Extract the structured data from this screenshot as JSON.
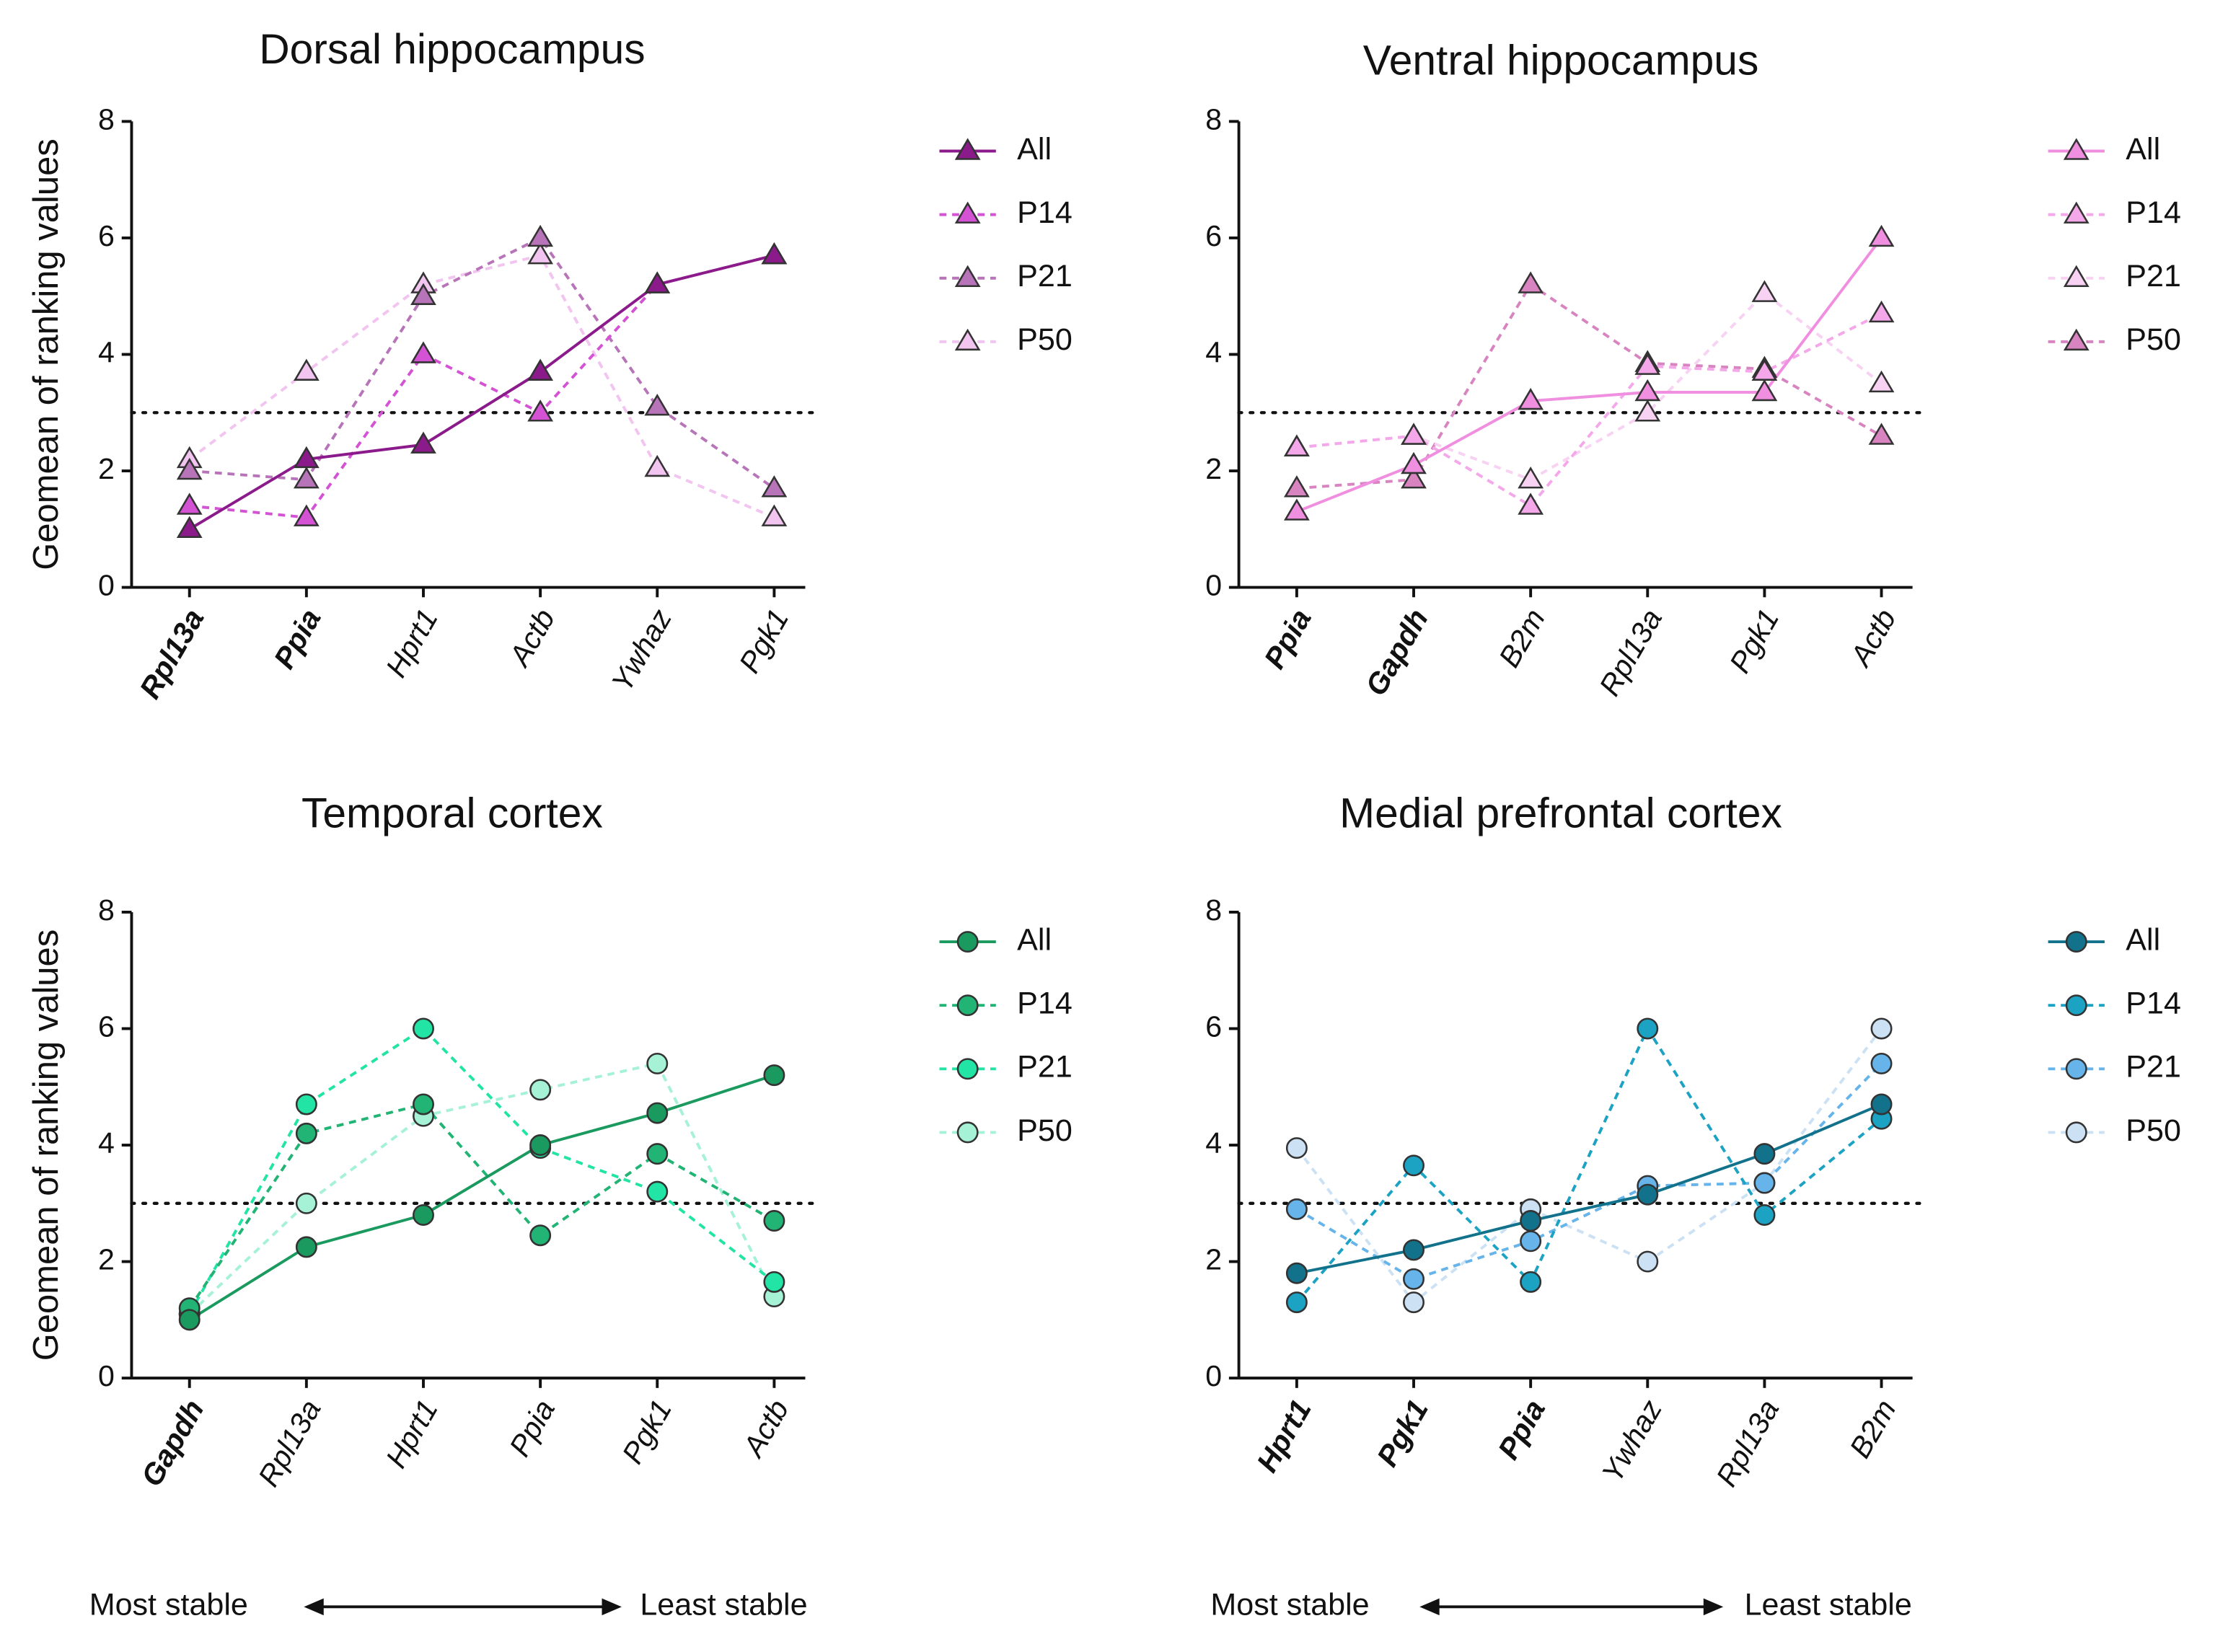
{
  "chart_data": [
    {
      "type": "line",
      "title": "Dorsal hippocampus",
      "ylabel": "Geomean of ranking values",
      "categories": [
        "Rpl13a",
        "Ppia",
        "Hprt1",
        "Actb",
        "Ywhaz",
        "Pgk1"
      ],
      "bold_categories": [
        true,
        true,
        false,
        false,
        false,
        false
      ],
      "ylim": [
        0,
        8
      ],
      "yticks": [
        0,
        2,
        4,
        6,
        8
      ],
      "reference_line": 3,
      "series": [
        {
          "name": "All",
          "color": "#8b1a8b",
          "marker": "triangle",
          "line_style": "solid",
          "values": [
            1.0,
            2.2,
            2.45,
            3.7,
            5.2,
            5.7
          ]
        },
        {
          "name": "P14",
          "color": "#d452d4",
          "marker": "triangle",
          "line_style": "dashed",
          "values": [
            1.4,
            1.2,
            4.0,
            3.0,
            5.2,
            5.7
          ]
        },
        {
          "name": "P21",
          "color": "#b874b8",
          "marker": "triangle",
          "line_style": "dashed",
          "values": [
            2.0,
            1.85,
            5.0,
            6.0,
            3.1,
            1.7
          ]
        },
        {
          "name": "P50",
          "color": "#f2c4f0",
          "marker": "triangle",
          "line_style": "dashed",
          "values": [
            2.2,
            3.7,
            5.2,
            5.7,
            2.05,
            1.2
          ]
        }
      ]
    },
    {
      "type": "line",
      "title": "Ventral hippocampus",
      "categories": [
        "Ppia",
        "Gapdh",
        "B2m",
        "Rpl13a",
        "Pgk1",
        "Actb"
      ],
      "bold_categories": [
        true,
        true,
        false,
        false,
        false,
        false
      ],
      "ylim": [
        0,
        8
      ],
      "yticks": [
        0,
        2,
        4,
        6,
        8
      ],
      "reference_line": 3,
      "series": [
        {
          "name": "All",
          "color": "#f08ee0",
          "marker": "triangle",
          "line_style": "solid",
          "values": [
            1.3,
            2.1,
            3.2,
            3.35,
            3.35,
            6.0
          ]
        },
        {
          "name": "P14",
          "color": "#f4a8ea",
          "marker": "triangle",
          "line_style": "dashed",
          "values": [
            2.4,
            2.6,
            1.4,
            3.8,
            3.7,
            4.7
          ]
        },
        {
          "name": "P21",
          "color": "#f8d2f2",
          "marker": "triangle",
          "line_style": "dashed",
          "values": [
            2.4,
            2.6,
            1.85,
            3.0,
            5.05,
            3.5
          ]
        },
        {
          "name": "P50",
          "color": "#d884c0",
          "marker": "triangle",
          "line_style": "dashed",
          "values": [
            1.7,
            1.85,
            5.2,
            3.85,
            3.75,
            2.6
          ]
        }
      ]
    },
    {
      "type": "line",
      "title": "Temporal cortex",
      "ylabel": "Geomean of ranking values",
      "categories": [
        "Gapdh",
        "Rpl13a",
        "Hprt1",
        "Ppia",
        "Pgk1",
        "Actb"
      ],
      "bold_categories": [
        true,
        false,
        false,
        false,
        false,
        false
      ],
      "ylim": [
        0,
        8
      ],
      "yticks": [
        0,
        2,
        4,
        6,
        8
      ],
      "reference_line": 3,
      "stability": {
        "left": "Most stable",
        "right": "Least stable"
      },
      "series": [
        {
          "name": "All",
          "color": "#1a9a5e",
          "marker": "circle",
          "line_style": "solid",
          "values": [
            1.0,
            2.25,
            2.8,
            4.0,
            4.55,
            5.2
          ]
        },
        {
          "name": "P14",
          "color": "#22b474",
          "marker": "circle",
          "line_style": "dashed",
          "values": [
            1.2,
            4.2,
            4.7,
            2.45,
            3.85,
            2.7
          ]
        },
        {
          "name": "P21",
          "color": "#22e4a4",
          "marker": "circle",
          "line_style": "dashed",
          "values": [
            1.1,
            4.7,
            6.0,
            3.95,
            3.2,
            1.65
          ]
        },
        {
          "name": "P50",
          "color": "#a6f2d6",
          "marker": "circle",
          "line_style": "dashed",
          "values": [
            1.1,
            3.0,
            4.5,
            4.95,
            5.4,
            1.4
          ]
        }
      ]
    },
    {
      "type": "line",
      "title": "Medial prefrontal cortex",
      "categories": [
        "Hprt1",
        "Pgk1",
        "Ppia",
        "Ywhaz",
        "Rpl13a",
        "B2m"
      ],
      "bold_categories": [
        true,
        true,
        true,
        false,
        false,
        false
      ],
      "ylim": [
        0,
        8
      ],
      "yticks": [
        0,
        2,
        4,
        6,
        8
      ],
      "reference_line": 3,
      "stability": {
        "left": "Most stable",
        "right": "Least stable"
      },
      "series": [
        {
          "name": "All",
          "color": "#12728c",
          "marker": "circle",
          "line_style": "solid",
          "values": [
            1.8,
            2.2,
            2.7,
            3.15,
            3.85,
            4.7
          ]
        },
        {
          "name": "P14",
          "color": "#1ca2c2",
          "marker": "circle",
          "line_style": "dashed",
          "values": [
            1.3,
            3.65,
            1.65,
            6.0,
            2.8,
            4.45
          ]
        },
        {
          "name": "P21",
          "color": "#66b4ea",
          "marker": "circle",
          "line_style": "dashed",
          "values": [
            2.9,
            1.7,
            2.35,
            3.3,
            3.35,
            5.4
          ]
        },
        {
          "name": "P50",
          "color": "#cce2f4",
          "marker": "circle",
          "line_style": "dashed",
          "values": [
            3.95,
            1.3,
            2.9,
            2.0,
            3.35,
            6.0
          ]
        }
      ]
    }
  ]
}
